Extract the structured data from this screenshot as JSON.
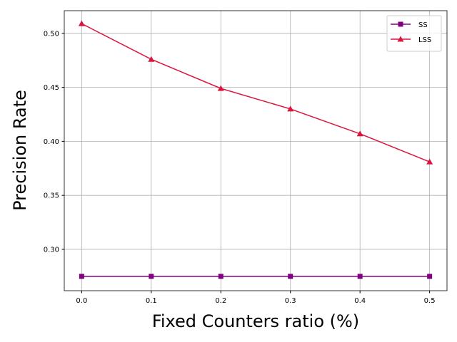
{
  "chart_data": {
    "type": "line",
    "x_label": "Fixed Counters ratio (%)",
    "y_label": "Precision Rate",
    "x": [
      0.0,
      0.1,
      0.2,
      0.3,
      0.4,
      0.5
    ],
    "series": [
      {
        "name": "SS",
        "color": "#800080",
        "marker": "square",
        "values": [
          0.275,
          0.275,
          0.275,
          0.275,
          0.275,
          0.275
        ]
      },
      {
        "name": "LSS",
        "color": "#dc143c",
        "marker": "triangle",
        "values": [
          0.509,
          0.476,
          0.449,
          0.43,
          0.407,
          0.381
        ]
      }
    ],
    "xlim": [
      -0.025,
      0.525
    ],
    "xticks": [
      {
        "value": 0,
        "label": "0.0"
      },
      {
        "value": 0.1,
        "label": "0.1"
      },
      {
        "value": 0.2,
        "label": "0.2"
      },
      {
        "value": 0.3,
        "label": "0.3"
      },
      {
        "value": 0.4,
        "label": "0.4"
      },
      {
        "value": 0.5,
        "label": "0.5"
      }
    ],
    "ylim": [
      0.2617,
      0.521
    ],
    "yticks": [
      {
        "value": 0.3,
        "label": "0.30"
      },
      {
        "value": 0.35,
        "label": "0.35"
      },
      {
        "value": 0.4,
        "label": "0.40"
      },
      {
        "value": 0.45,
        "label": "0.45"
      },
      {
        "value": 0.5,
        "label": "0.50"
      }
    ],
    "grid": true,
    "legend": "upper right"
  }
}
